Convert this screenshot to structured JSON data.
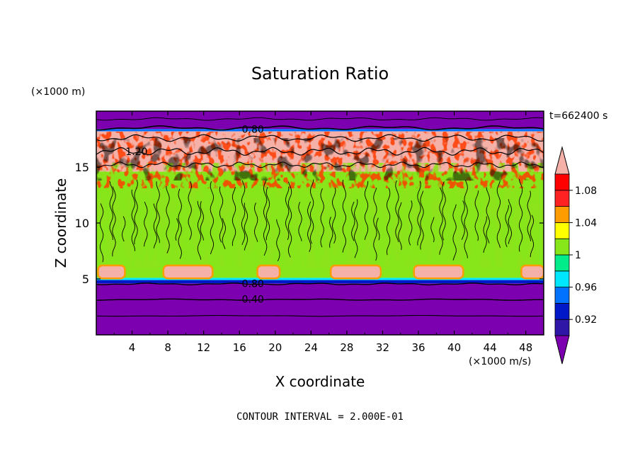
{
  "chart_data": {
    "type": "heatmap",
    "title": "Saturation Ratio",
    "xlabel": "X coordinate",
    "ylabel": "Z coordinate",
    "x_unit": "(×1000 m/s)",
    "y_unit": "(×1000 m)",
    "time_label": "t=662400 s",
    "footer": "CONTOUR INTERVAL = 2.000E-01",
    "xlim": [
      0,
      50
    ],
    "ylim": [
      0,
      20
    ],
    "x_ticks": [
      4,
      8,
      12,
      16,
      20,
      24,
      28,
      32,
      36,
      40,
      44,
      48
    ],
    "x_tick_labels": [
      "4",
      "8",
      "12",
      "16",
      "20",
      "24",
      "28",
      "32",
      "36",
      "40",
      "44",
      "48"
    ],
    "y_ticks": [
      5,
      10,
      15
    ],
    "y_tick_labels": [
      "5",
      "10",
      "15"
    ],
    "contour_labels": [
      {
        "text": "0.80",
        "x": 17.5,
        "z": 18.4
      },
      {
        "text": "1.20",
        "x": 4.5,
        "z": 16.4
      },
      {
        "text": "0.80",
        "x": 17.5,
        "z": 4.6
      },
      {
        "text": "0.40",
        "x": 17.5,
        "z": 3.2
      }
    ],
    "colorbar": {
      "boundaries": [
        0.9,
        0.92,
        0.94,
        0.96,
        0.98,
        1.0,
        1.02,
        1.04,
        1.06,
        1.08,
        1.1
      ],
      "colors": [
        "#7c00b0",
        "#2f16a6",
        "#0018c8",
        "#0072ff",
        "#00e6ff",
        "#00ec8a",
        "#86e61a",
        "#ffff00",
        "#ff9c00",
        "#ff2222",
        "#ff0000",
        "#f5b0a8"
      ],
      "tick_values": [
        1.08,
        1.04,
        1.0,
        0.96,
        0.92
      ],
      "tick_labels": [
        "1.08",
        "1.04",
        "1",
        "0.96",
        "0.92"
      ]
    },
    "layers": [
      {
        "z0": 0.0,
        "z1": 4.6,
        "value": 0.5
      },
      {
        "z0": 4.6,
        "z1": 4.9,
        "value": 0.93
      },
      {
        "z0": 4.9,
        "z1": 5.1,
        "value": 0.97
      },
      {
        "z0": 5.1,
        "z1": 14.6,
        "value": 1.0
      },
      {
        "z0": 14.6,
        "z1": 18.2,
        "value": 1.2
      },
      {
        "z0": 18.2,
        "z1": 18.4,
        "value": 0.95
      },
      {
        "z0": 18.4,
        "z1": 20.0,
        "value": 0.7
      }
    ],
    "low_cloud_patches": [
      {
        "x0": 0.2,
        "x1": 3.2
      },
      {
        "x0": 7.5,
        "x1": 13.0
      },
      {
        "x0": 18.0,
        "x1": 20.5
      },
      {
        "x0": 26.2,
        "x1": 31.8
      },
      {
        "x0": 35.5,
        "x1": 41.0
      },
      {
        "x0": 47.5,
        "x1": 50.0
      }
    ]
  }
}
